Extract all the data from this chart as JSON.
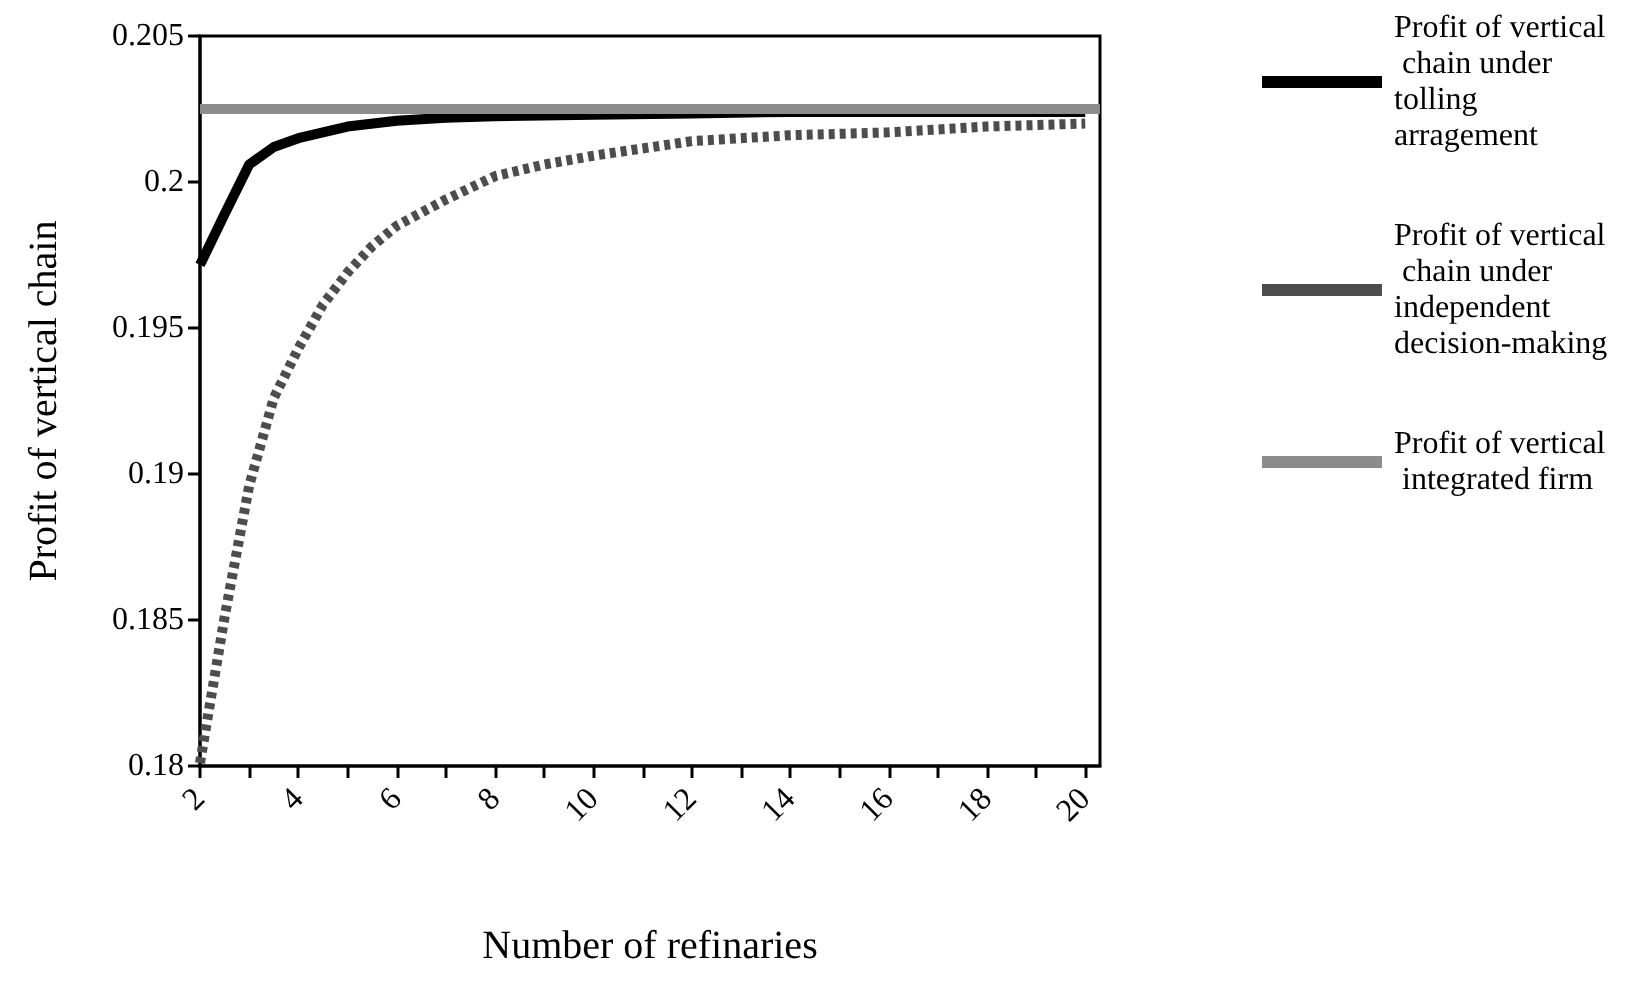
{
  "chart_data": {
    "type": "line",
    "xlabel": "Number of refinaries",
    "ylabel": "Profit of vertical chain",
    "xlim": [
      2,
      20.3
    ],
    "xticks": [
      2,
      {
        "value": 3,
        "label": null
      },
      4,
      {
        "value": 5,
        "label": null
      },
      6,
      {
        "value": 7,
        "label": null
      },
      8,
      {
        "value": 9,
        "label": null
      },
      10,
      {
        "value": 11,
        "label": null
      },
      12,
      {
        "value": 13,
        "label": null
      },
      14,
      {
        "value": 15,
        "label": null
      },
      16,
      {
        "value": 17,
        "label": null
      },
      18,
      {
        "value": 19,
        "label": null
      },
      20
    ],
    "ylim": [
      0.18,
      0.205
    ],
    "yticks": [
      0.18,
      0.185,
      0.19,
      0.195,
      0.2,
      0.205
    ],
    "grid": false,
    "legend": "right",
    "marker": "none",
    "series": [
      {
        "name": "Profit of vertical chain under tolling arragement",
        "color": "#000000",
        "line_style": "solid",
        "x": [
          2,
          2.5,
          3,
          3.5,
          4,
          5,
          6,
          7,
          8,
          10,
          12,
          14,
          16,
          18,
          20
        ],
        "values": [
          0.19716,
          0.1989,
          0.2006,
          0.2012,
          0.2015,
          0.2019,
          0.2021,
          0.2022,
          0.20225,
          0.2023,
          0.20235,
          0.2024,
          0.2024,
          0.2024,
          0.2024
        ]
      },
      {
        "name": "Profit of vertical chain under independent decision-making",
        "color": "#4d4d4d",
        "line_style": "dashed",
        "x": [
          2,
          2.5,
          3,
          3.5,
          4,
          4.5,
          5,
          5.5,
          6,
          7,
          8,
          9,
          10,
          12,
          14,
          16,
          18,
          20
        ],
        "values": [
          0.1801,
          0.1851,
          0.1896,
          0.1926,
          0.1943,
          0.1958,
          0.1969,
          0.1978,
          0.1985,
          0.1994,
          0.2002,
          0.2006,
          0.2009,
          0.2014,
          0.2016,
          0.2017,
          0.2019,
          0.202
        ]
      },
      {
        "name": "Profit of vertical integrated firm",
        "color": "#8c8c8c",
        "line_style": "solid",
        "x": [
          2,
          20.3
        ],
        "values": [
          0.2025,
          0.2025
        ]
      }
    ]
  }
}
